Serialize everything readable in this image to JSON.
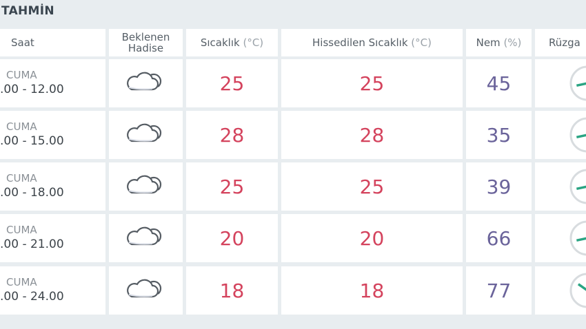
{
  "title": "TAHMİN",
  "headers": {
    "saat": "Saat",
    "hadise_1": "Beklenen",
    "hadise_2": "Hadise",
    "sicaklik": "Sıcaklık",
    "sicaklik_unit": "(°C)",
    "hissedilen": "Hissedilen Sıcaklık",
    "hissedilen_unit": "(°C)",
    "nem": "Nem",
    "nem_unit": "(%)",
    "ruzgar": "Rüzga"
  },
  "colors": {
    "temperature": "#d4435d",
    "humidity": "#6a639a",
    "wind": "#2aa483"
  },
  "rows": [
    {
      "day": "CUMA",
      "time": ".00 - 12.00",
      "icon": "cloud-icon",
      "temp": "25",
      "feels": "25",
      "humidity": "45",
      "wind_dir": "up-right"
    },
    {
      "day": "CUMA",
      "time": ".00 - 15.00",
      "icon": "cloud-icon",
      "temp": "28",
      "feels": "28",
      "humidity": "35",
      "wind_dir": "up-right"
    },
    {
      "day": "CUMA",
      "time": ".00 - 18.00",
      "icon": "cloud-icon",
      "temp": "25",
      "feels": "25",
      "humidity": "39",
      "wind_dir": "up-right"
    },
    {
      "day": "CUMA",
      "time": ".00 - 21.00",
      "icon": "cloud-icon",
      "temp": "20",
      "feels": "20",
      "humidity": "66",
      "wind_dir": "up-right"
    },
    {
      "day": "CUMA",
      "time": ".00 - 24.00",
      "icon": "cloud-icon",
      "temp": "18",
      "feels": "18",
      "humidity": "77",
      "wind_dir": "down-right"
    }
  ]
}
